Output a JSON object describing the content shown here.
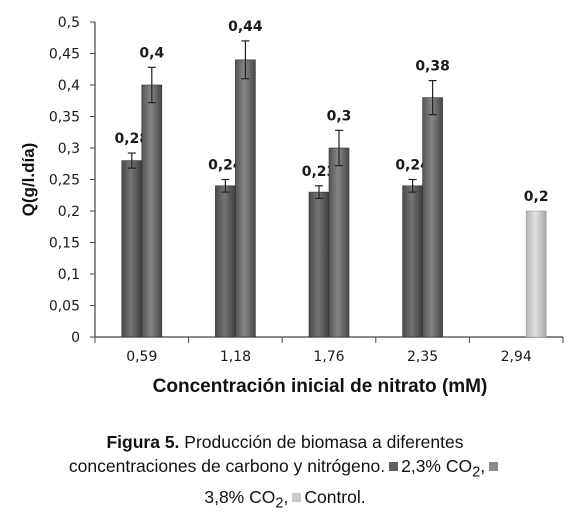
{
  "chart_data": {
    "type": "bar",
    "categories": [
      "0,59",
      "1,18",
      "1,76",
      "2,35",
      "2,94"
    ],
    "series": [
      {
        "name": "2,3% CO2",
        "values": [
          0.28,
          0.24,
          0.23,
          0.24,
          null
        ],
        "errors": [
          0.012,
          0.01,
          0.01,
          0.01,
          null
        ],
        "labels": [
          "0,28",
          "0,24",
          "0,23",
          "0,24",
          ""
        ],
        "color": "#5e5e5e"
      },
      {
        "name": "3,8% CO2",
        "values": [
          0.4,
          0.44,
          0.3,
          0.38,
          null
        ],
        "errors": [
          0.028,
          0.03,
          0.028,
          0.027,
          null
        ],
        "labels": [
          "0,4",
          "0,44",
          "0,3",
          "0,38",
          ""
        ],
        "color": "#6b6b6b"
      },
      {
        "name": "Control",
        "values": [
          null,
          null,
          null,
          null,
          0.2
        ],
        "errors": [
          null,
          null,
          null,
          null,
          null
        ],
        "labels": [
          "",
          "",
          "",
          "",
          "0,2"
        ],
        "color": "#c9c9c9"
      }
    ],
    "ylim": [
      0,
      0.5
    ],
    "yticks": [
      "0",
      "0,05",
      "0,1",
      "0,15",
      "0,2",
      "0,25",
      "0,3",
      "0,35",
      "0,4",
      "0,45",
      "0,5"
    ],
    "xlabel": "Concentración inicial de nitrato (mM)",
    "ylabel": "Q(g/l.día)",
    "grid": false,
    "legend": "caption"
  },
  "caption": {
    "figure_label": "Figura 5.",
    "line1_text": "Producción de biomasa a diferentes",
    "line2_text": "concentraciones de carbono y nitrógeno.",
    "legend1_text": "2,3% CO",
    "legend1_sub": "2",
    "legend2_text": "3,8% CO",
    "legend2_sub": "2",
    "legend3_text": "Control.",
    "sep": ","
  }
}
